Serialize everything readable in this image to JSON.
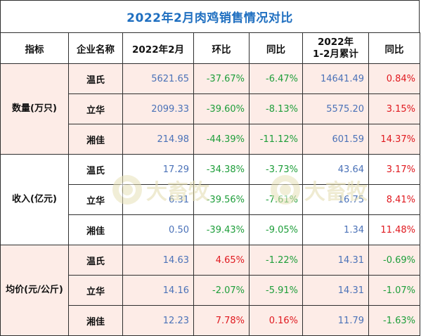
{
  "title": "2022年2月肉鸡销售情况对比",
  "headers": {
    "indicator": "指标",
    "company": "企业名称",
    "month": "2022年2月",
    "mom": "环比",
    "yoy": "同比",
    "cumulative_line1": "2022年",
    "cumulative_line2": "1-2月累计",
    "cum_yoy": "同比"
  },
  "groups": [
    {
      "indicator": "数量(万只)",
      "rows": [
        {
          "company": "温氏",
          "month": "5621.65",
          "mom": "-37.67%",
          "yoy": "-6.47%",
          "cumulative": "14641.49",
          "cum_yoy": "0.84%"
        },
        {
          "company": "立华",
          "month": "2099.33",
          "mom": "-39.60%",
          "yoy": "-8.13%",
          "cumulative": "5575.20",
          "cum_yoy": "3.15%"
        },
        {
          "company": "湘佳",
          "month": "214.98",
          "mom": "-44.39%",
          "yoy": "-11.12%",
          "cumulative": "601.59",
          "cum_yoy": "14.37%"
        }
      ]
    },
    {
      "indicator": "收入(亿元)",
      "rows": [
        {
          "company": "温氏",
          "month": "17.29",
          "mom": "-34.38%",
          "yoy": "-3.73%",
          "cumulative": "43.64",
          "cum_yoy": "3.17%"
        },
        {
          "company": "立华",
          "month": "6.31",
          "mom": "-39.56%",
          "yoy": "-7.61%",
          "cumulative": "16.75",
          "cum_yoy": "8.41%"
        },
        {
          "company": "湘佳",
          "month": "0.50",
          "mom": "-39.43%",
          "yoy": "-9.05%",
          "cumulative": "1.34",
          "cum_yoy": "11.48%"
        }
      ]
    },
    {
      "indicator": "均价(元/公斤)",
      "rows": [
        {
          "company": "温氏",
          "month": "14.63",
          "mom": "4.65%",
          "yoy": "-1.22%",
          "cumulative": "14.31",
          "cum_yoy": "-0.69%"
        },
        {
          "company": "立华",
          "month": "14.16",
          "mom": "-2.07%",
          "yoy": "-5.91%",
          "cumulative": "14.31",
          "cum_yoy": "-1.07%"
        },
        {
          "company": "湘佳",
          "month": "12.23",
          "mom": "7.78%",
          "yoy": "0.16%",
          "cumulative": "11.79",
          "cum_yoy": "-1.63%"
        }
      ]
    }
  ],
  "watermark": {
    "text": "大畜牧",
    "url_text": "www.dxmu.com"
  },
  "colors": {
    "title": "#1f6fc0",
    "value_blue": "#4b72b8",
    "positive_red": "#e0191f",
    "negative_green": "#1e9e3a",
    "row_fill": "#fdece7"
  }
}
